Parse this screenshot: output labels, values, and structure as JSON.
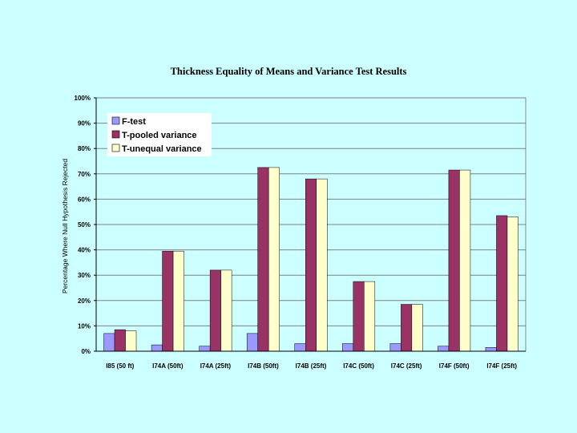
{
  "chart_data": {
    "type": "bar",
    "title": "Thickness Equality of Means and Variance Test Results",
    "xlabel": "",
    "ylabel": "Percentage Where Null Hypothesis Rejected",
    "ylim": [
      0,
      100
    ],
    "yticks": [
      "0%",
      "10%",
      "20%",
      "30%",
      "40%",
      "50%",
      "60%",
      "70%",
      "80%",
      "90%",
      "100%"
    ],
    "grid": true,
    "legend_position": "top-left",
    "categories": [
      "I85 (50 ft)",
      "I74A (50ft)",
      "I74A (25ft)",
      "I74B (50ft)",
      "I74B (25ft)",
      "I74C (50ft)",
      "I74C (25ft)",
      "I74F (50ft)",
      "I74F (25ft)"
    ],
    "series": [
      {
        "name": "F-test",
        "color": "#9999ff",
        "values": [
          7,
          2.5,
          2,
          7,
          3,
          3,
          3,
          2,
          1.5
        ]
      },
      {
        "name": "T-pooled variance",
        "color": "#993366",
        "values": [
          8.5,
          39.5,
          32,
          72.5,
          68,
          27.5,
          18.5,
          71.5,
          53.5
        ]
      },
      {
        "name": "T-unequal variance",
        "color": "#ffffcc",
        "values": [
          8,
          39.5,
          32,
          72.5,
          68,
          27.5,
          18.5,
          71.5,
          53
        ]
      }
    ]
  }
}
